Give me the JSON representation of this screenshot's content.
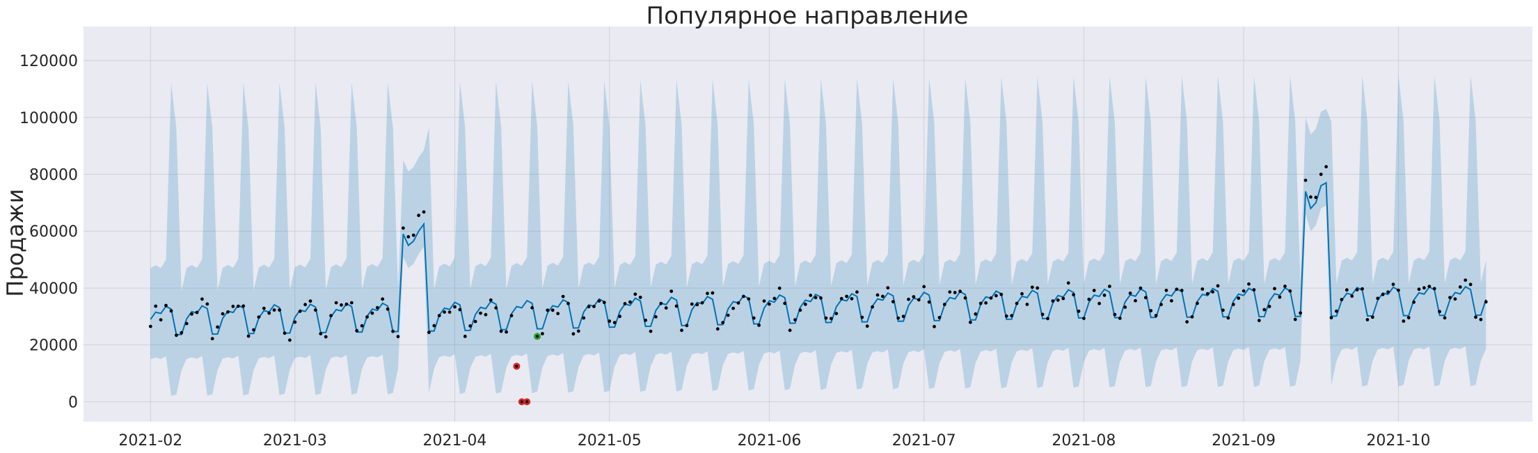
{
  "chart_data": {
    "type": "line",
    "title": "Популярное направление",
    "xlabel": "",
    "ylabel": "Продажи",
    "grid": true,
    "x_range": [
      "2021-01-19",
      "2021-10-27"
    ],
    "ylim": [
      -7000,
      132000
    ],
    "y_ticks": [
      0,
      20000,
      40000,
      60000,
      80000,
      100000,
      120000
    ],
    "x_ticks": [
      "2021-02",
      "2021-03",
      "2021-04",
      "2021-05",
      "2021-06",
      "2021-07",
      "2021-08",
      "2021-09",
      "2021-10"
    ],
    "series": [
      {
        "name": "forecast",
        "kind": "line",
        "color": "#0072B2",
        "start_date": "2021-02-01",
        "end_date": "2021-10-18",
        "weekly_pattern": [
          29000,
          31500,
          31000,
          33500,
          32500,
          23500,
          23500
        ],
        "level_knots": [
          [
            "2021-02-01",
            0
          ],
          [
            "2021-04-01",
            1500
          ],
          [
            "2021-06-01",
            4000
          ],
          [
            "2021-08-01",
            6000
          ],
          [
            "2021-10-18",
            7000
          ]
        ],
        "spikes": [
          {
            "date": "2021-03-22",
            "values": [
              59000,
              55000,
              56500,
              60000,
              62500
            ]
          },
          {
            "date": "2021-09-13",
            "values": [
              74000,
              68000,
              70000,
              76000,
              77000
            ]
          }
        ]
      },
      {
        "name": "uncertainty_interval",
        "kind": "band",
        "color": "#0072B2",
        "lower_pattern": [
          15000,
          15500,
          15000,
          16000,
          2000,
          2500,
          11000
        ],
        "upper_pattern": [
          47000,
          48000,
          47000,
          50000,
          112000,
          96000,
          39000
        ]
      },
      {
        "name": "observed",
        "kind": "scatter",
        "color": "#000000",
        "noise_amplitude": 2500
      },
      {
        "name": "anomalies",
        "kind": "scatter",
        "color": "#d62728",
        "points": [
          [
            "2021-04-13",
            12500
          ],
          [
            "2021-04-14",
            0
          ],
          [
            "2021-04-15",
            0
          ]
        ]
      },
      {
        "name": "marked_point",
        "kind": "scatter",
        "color": "#2ca02c",
        "points": [
          [
            "2021-04-17",
            23000
          ]
        ]
      }
    ]
  }
}
